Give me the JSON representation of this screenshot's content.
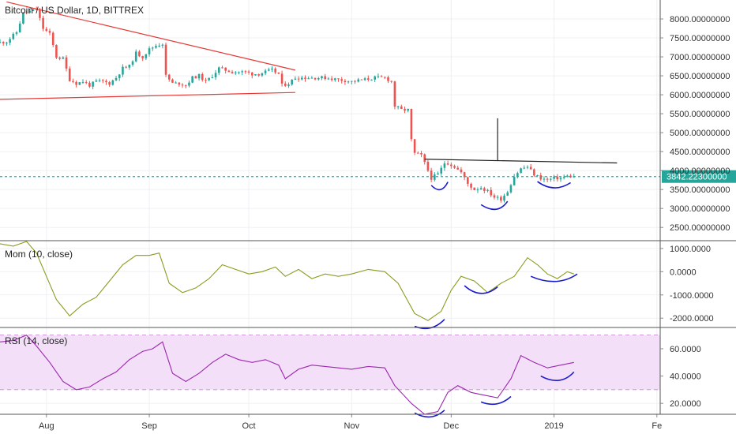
{
  "header": {
    "title": "Bitcoin / US Dollar, 1D, BITTREX"
  },
  "chart_data": {
    "type": "candlestick",
    "x_ticks": [
      "Aug",
      "Sep",
      "Oct",
      "Nov",
      "Dec",
      "2019",
      "Fe"
    ],
    "x_range": [
      "2018-07-18",
      "2019-02-02"
    ],
    "price_panel": {
      "y_ticks": [
        "8000.00000000",
        "7500.00000000",
        "7000.00000000",
        "6500.00000000",
        "6000.00000000",
        "5500.00000000",
        "5000.00000000",
        "4500.00000000",
        "4000.00000000",
        "3500.00000000",
        "3000.00000000",
        "2500.00000000"
      ],
      "ylim": [
        2150,
        8500
      ],
      "last_price_label": "3842.22300000",
      "last_price": 3842.223,
      "up_color": "#26a69a",
      "down_color": "#ef5350",
      "close_path": [
        [
          "2018-07-18",
          7380
        ],
        [
          "2018-07-20",
          7400
        ],
        [
          "2018-07-23",
          7650
        ],
        [
          "2018-07-25",
          8150
        ],
        [
          "2018-07-27",
          8200
        ],
        [
          "2018-07-29",
          8250
        ],
        [
          "2018-07-31",
          7750
        ],
        [
          "2018-08-02",
          7600
        ],
        [
          "2018-08-04",
          7000
        ],
        [
          "2018-08-06",
          6950
        ],
        [
          "2018-08-08",
          6400
        ],
        [
          "2018-08-10",
          6300
        ],
        [
          "2018-08-12",
          6350
        ],
        [
          "2018-08-14",
          6250
        ],
        [
          "2018-08-16",
          6350
        ],
        [
          "2018-08-18",
          6350
        ],
        [
          "2018-08-20",
          6300
        ],
        [
          "2018-08-22",
          6450
        ],
        [
          "2018-08-24",
          6700
        ],
        [
          "2018-08-26",
          6750
        ],
        [
          "2018-08-28",
          7100
        ],
        [
          "2018-08-30",
          7000
        ],
        [
          "2018-09-01",
          7200
        ],
        [
          "2018-09-03",
          7300
        ],
        [
          "2018-09-05",
          7350
        ],
        [
          "2018-09-06",
          6500
        ],
        [
          "2018-09-08",
          6300
        ],
        [
          "2018-09-10",
          6300
        ],
        [
          "2018-09-12",
          6250
        ],
        [
          "2018-09-14",
          6450
        ],
        [
          "2018-09-16",
          6500
        ],
        [
          "2018-09-18",
          6350
        ],
        [
          "2018-09-20",
          6500
        ],
        [
          "2018-09-22",
          6700
        ],
        [
          "2018-09-24",
          6650
        ],
        [
          "2018-09-26",
          6600
        ],
        [
          "2018-09-28",
          6600
        ],
        [
          "2018-09-30",
          6600
        ],
        [
          "2018-10-02",
          6550
        ],
        [
          "2018-10-04",
          6550
        ],
        [
          "2018-10-06",
          6600
        ],
        [
          "2018-10-08",
          6650
        ],
        [
          "2018-10-10",
          6550
        ],
        [
          "2018-10-11",
          6250
        ],
        [
          "2018-10-13",
          6300
        ],
        [
          "2018-10-15",
          6450
        ],
        [
          "2018-10-17",
          6450
        ],
        [
          "2018-10-20",
          6450
        ],
        [
          "2018-10-24",
          6450
        ],
        [
          "2018-10-28",
          6400
        ],
        [
          "2018-11-01",
          6350
        ],
        [
          "2018-11-05",
          6400
        ],
        [
          "2018-11-08",
          6450
        ],
        [
          "2018-11-11",
          6450
        ],
        [
          "2018-11-13",
          6350
        ],
        [
          "2018-11-14",
          5700
        ],
        [
          "2018-11-16",
          5600
        ],
        [
          "2018-11-18",
          5600
        ],
        [
          "2018-11-19",
          4800
        ],
        [
          "2018-11-20",
          4450
        ],
        [
          "2018-11-22",
          4400
        ],
        [
          "2018-11-24",
          4000
        ],
        [
          "2018-11-25",
          3800
        ],
        [
          "2018-11-27",
          3900
        ],
        [
          "2018-11-29",
          4200
        ],
        [
          "2018-11-30",
          4200
        ],
        [
          "2018-12-02",
          4100
        ],
        [
          "2018-12-04",
          3950
        ],
        [
          "2018-12-06",
          3650
        ],
        [
          "2018-12-08",
          3500
        ],
        [
          "2018-12-10",
          3550
        ],
        [
          "2018-12-12",
          3450
        ],
        [
          "2018-12-14",
          3300
        ],
        [
          "2018-12-16",
          3250
        ],
        [
          "2018-12-18",
          3450
        ],
        [
          "2018-12-20",
          3850
        ],
        [
          "2018-12-22",
          4050
        ],
        [
          "2018-12-24",
          4100
        ],
        [
          "2018-12-26",
          3900
        ],
        [
          "2018-12-28",
          3800
        ],
        [
          "2018-12-30",
          3750
        ],
        [
          "2019-01-01",
          3800
        ],
        [
          "2019-01-03",
          3800
        ],
        [
          "2019-01-05",
          3850
        ],
        [
          "2019-01-07",
          3842
        ]
      ],
      "annotations": {
        "wedge_upper": [
          [
            "2018-07-20",
            8450
          ],
          [
            "2018-10-15",
            6650
          ]
        ],
        "wedge_lower": [
          [
            "2018-07-18",
            5880
          ],
          [
            "2018-10-15",
            6060
          ]
        ],
        "neckline": [
          [
            "2018-11-23",
            4300
          ],
          [
            "2019-01-20",
            4200
          ]
        ],
        "target_line": [
          [
            "2018-12-15",
            5380
          ],
          [
            "2018-12-15",
            4270
          ]
        ]
      }
    },
    "momentum_panel": {
      "title": "Mom (10, close)",
      "y_ticks": [
        "1000.0000",
        "0.0000",
        "-1000.0000",
        "-2000.0000"
      ],
      "ylim": [
        -2400,
        1300
      ],
      "line_color": "#8c9b1f",
      "series": [
        [
          "2018-07-18",
          1200
        ],
        [
          "2018-07-22",
          1100
        ],
        [
          "2018-07-26",
          1300
        ],
        [
          "2018-07-29",
          800
        ],
        [
          "2018-08-01",
          -200
        ],
        [
          "2018-08-04",
          -1200
        ],
        [
          "2018-08-08",
          -1900
        ],
        [
          "2018-08-12",
          -1400
        ],
        [
          "2018-08-16",
          -1100
        ],
        [
          "2018-08-20",
          -400
        ],
        [
          "2018-08-24",
          300
        ],
        [
          "2018-08-28",
          700
        ],
        [
          "2018-09-01",
          700
        ],
        [
          "2018-09-04",
          800
        ],
        [
          "2018-09-07",
          -500
        ],
        [
          "2018-09-11",
          -900
        ],
        [
          "2018-09-15",
          -700
        ],
        [
          "2018-09-19",
          -300
        ],
        [
          "2018-09-23",
          300
        ],
        [
          "2018-09-27",
          100
        ],
        [
          "2018-10-01",
          -100
        ],
        [
          "2018-10-05",
          0
        ],
        [
          "2018-10-09",
          200
        ],
        [
          "2018-10-12",
          -200
        ],
        [
          "2018-10-16",
          100
        ],
        [
          "2018-10-20",
          -300
        ],
        [
          "2018-10-24",
          -100
        ],
        [
          "2018-10-28",
          -200
        ],
        [
          "2018-11-01",
          -100
        ],
        [
          "2018-11-06",
          100
        ],
        [
          "2018-11-11",
          0
        ],
        [
          "2018-11-15",
          -500
        ],
        [
          "2018-11-20",
          -1800
        ],
        [
          "2018-11-24",
          -2100
        ],
        [
          "2018-11-28",
          -1700
        ],
        [
          "2018-12-01",
          -800
        ],
        [
          "2018-12-04",
          -200
        ],
        [
          "2018-12-08",
          -400
        ],
        [
          "2018-12-12",
          -900
        ],
        [
          "2018-12-16",
          -500
        ],
        [
          "2018-12-20",
          -200
        ],
        [
          "2018-12-24",
          600
        ],
        [
          "2018-12-27",
          300
        ],
        [
          "2018-12-30",
          -100
        ],
        [
          "2019-01-02",
          -300
        ],
        [
          "2019-01-05",
          0
        ],
        [
          "2019-01-07",
          -100
        ]
      ]
    },
    "rsi_panel": {
      "title": "RSI (14, close)",
      "y_ticks": [
        "60.0000",
        "40.0000",
        "20.0000"
      ],
      "ylim": [
        12,
        75
      ],
      "band": [
        30,
        70
      ],
      "line_color": "#9c27b0",
      "band_color": "#f3dff8",
      "series": [
        [
          "2018-07-18",
          65
        ],
        [
          "2018-07-22",
          66
        ],
        [
          "2018-07-26",
          70
        ],
        [
          "2018-07-29",
          62
        ],
        [
          "2018-08-02",
          50
        ],
        [
          "2018-08-06",
          36
        ],
        [
          "2018-08-10",
          30
        ],
        [
          "2018-08-14",
          32
        ],
        [
          "2018-08-18",
          38
        ],
        [
          "2018-08-22",
          43
        ],
        [
          "2018-08-26",
          52
        ],
        [
          "2018-08-30",
          58
        ],
        [
          "2018-09-02",
          60
        ],
        [
          "2018-09-05",
          65
        ],
        [
          "2018-09-08",
          42
        ],
        [
          "2018-09-12",
          36
        ],
        [
          "2018-09-16",
          42
        ],
        [
          "2018-09-20",
          50
        ],
        [
          "2018-09-24",
          56
        ],
        [
          "2018-09-28",
          52
        ],
        [
          "2018-10-02",
          50
        ],
        [
          "2018-10-06",
          52
        ],
        [
          "2018-10-10",
          48
        ],
        [
          "2018-10-12",
          38
        ],
        [
          "2018-10-16",
          45
        ],
        [
          "2018-10-20",
          48
        ],
        [
          "2018-10-24",
          47
        ],
        [
          "2018-10-28",
          46
        ],
        [
          "2018-11-01",
          45
        ],
        [
          "2018-11-06",
          47
        ],
        [
          "2018-11-11",
          46
        ],
        [
          "2018-11-14",
          33
        ],
        [
          "2018-11-19",
          20
        ],
        [
          "2018-11-23",
          12
        ],
        [
          "2018-11-27",
          14
        ],
        [
          "2018-11-30",
          28
        ],
        [
          "2018-12-03",
          33
        ],
        [
          "2018-12-07",
          28
        ],
        [
          "2018-12-11",
          26
        ],
        [
          "2018-12-15",
          24
        ],
        [
          "2018-12-19",
          38
        ],
        [
          "2018-12-22",
          55
        ],
        [
          "2018-12-26",
          50
        ],
        [
          "2018-12-30",
          46
        ],
        [
          "2019-01-03",
          48
        ],
        [
          "2019-01-07",
          50
        ]
      ]
    },
    "hand_drawn_curves": {
      "price": [
        [
          "2018-11-25",
          3610
        ],
        [
          "2018-11-28",
          3550
        ],
        [
          "2018-11-30",
          3700
        ],
        [
          "2018-12-10",
          3100
        ],
        [
          "2018-12-15",
          3020
        ],
        [
          "2018-12-18",
          3190
        ],
        [
          "2018-12-27",
          3710
        ],
        [
          "2019-01-01",
          3600
        ],
        [
          "2019-01-06",
          3680
        ]
      ],
      "momentum": [
        [
          "2018-11-20",
          -2350
        ],
        [
          "2018-11-25",
          -2300
        ],
        [
          "2018-11-29",
          -2050
        ],
        [
          "2018-12-05",
          -600
        ],
        [
          "2018-12-10",
          -900
        ],
        [
          "2018-12-15",
          -650
        ],
        [
          "2018-12-25",
          -200
        ],
        [
          "2019-01-02",
          -350
        ],
        [
          "2019-01-08",
          -100
        ]
      ],
      "rsi": [
        [
          "2018-11-20",
          13
        ],
        [
          "2018-11-25",
          12
        ],
        [
          "2018-11-29",
          15
        ],
        [
          "2018-12-10",
          21
        ],
        [
          "2018-12-15",
          22
        ],
        [
          "2018-12-19",
          25
        ],
        [
          "2018-12-28",
          40
        ],
        [
          "2019-01-03",
          38
        ],
        [
          "2019-01-07",
          43
        ]
      ]
    }
  }
}
